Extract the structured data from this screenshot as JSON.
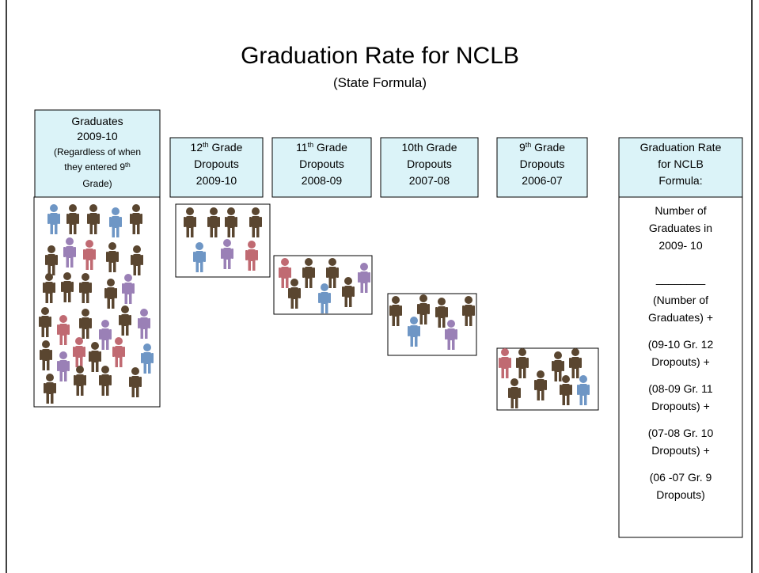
{
  "title": "Graduation Rate for NCLB",
  "subtitle": "(State Formula)",
  "columns": [
    {
      "lines": [
        [
          {
            "text": "Graduates"
          }
        ],
        [
          {
            "text": "2009-10"
          }
        ],
        [
          {
            "text": "(Regardless of when"
          }
        ],
        [
          {
            "text": "they entered 9"
          },
          {
            "text": "th",
            "sup": true
          }
        ],
        [
          {
            "text": "Grade)"
          }
        ]
      ]
    },
    {
      "lines": [
        [
          {
            "text": "12"
          },
          {
            "text": "th",
            "sup": true
          },
          {
            "text": " Grade"
          }
        ],
        [
          {
            "text": "Dropouts"
          }
        ],
        [
          {
            "text": "2009-10"
          }
        ]
      ]
    },
    {
      "lines": [
        [
          {
            "text": "11"
          },
          {
            "text": "th",
            "sup": true
          },
          {
            "text": " Grade"
          }
        ],
        [
          {
            "text": "Dropouts"
          }
        ],
        [
          {
            "text": "2008-09"
          }
        ]
      ]
    },
    {
      "lines": [
        [
          {
            "text": "10th Grade"
          }
        ],
        [
          {
            "text": "Dropouts"
          }
        ],
        [
          {
            "text": "2007-08"
          }
        ]
      ]
    },
    {
      "lines": [
        [
          {
            "text": "9"
          },
          {
            "text": "th",
            "sup": true
          },
          {
            "text": " Grade"
          }
        ],
        [
          {
            "text": "Dropouts"
          }
        ],
        [
          {
            "text": "2006-07"
          }
        ]
      ]
    },
    {
      "lines": [
        [
          {
            "text": "Graduation Rate"
          }
        ],
        [
          {
            "text": "for NCLB"
          }
        ],
        [
          {
            "text": "Formula:"
          }
        ]
      ]
    }
  ],
  "formula": [
    "Number of",
    "Graduates in",
    "2009- 10",
    "________",
    "(Number of",
    "Graduates) +",
    "(09-10 Gr. 12",
    "Dropouts)  +",
    "(08-09 Gr. 11",
    "Dropouts) +",
    "(07-08 Gr. 10",
    "Dropouts) +",
    "(06 -07 Gr. 9",
    "Dropouts)"
  ]
}
